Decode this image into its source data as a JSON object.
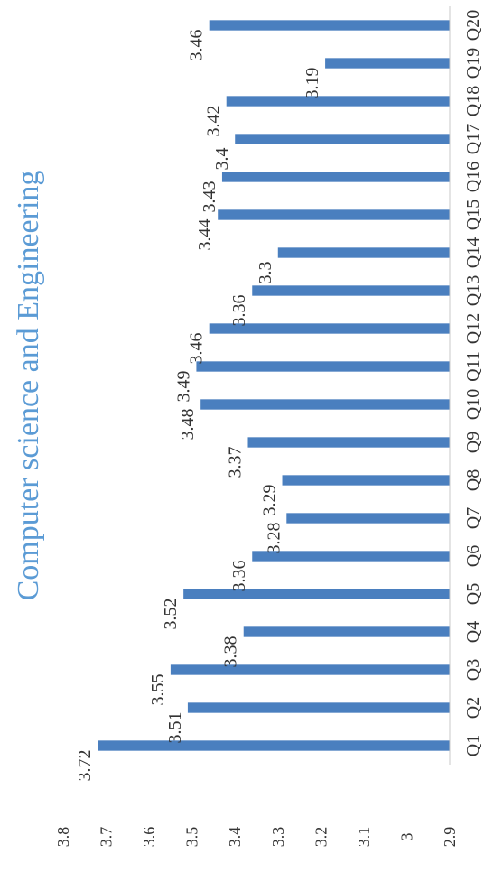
{
  "chart_data": {
    "type": "bar",
    "orientation": "rotated-90-ccw",
    "title": "Computer science and Engineering",
    "categories": [
      "Q1",
      "Q2",
      "Q3",
      "Q4",
      "Q5",
      "Q6",
      "Q7",
      "Q8",
      "Q9",
      "Q10",
      "Q11",
      "Q12",
      "Q13",
      "Q14",
      "Q15",
      "Q16",
      "Q17",
      "Q18",
      "Q19",
      "Q20"
    ],
    "values": [
      3.72,
      3.51,
      3.55,
      3.38,
      3.52,
      3.36,
      3.28,
      3.29,
      3.37,
      3.48,
      3.49,
      3.46,
      3.36,
      3.3,
      3.44,
      3.43,
      3.4,
      3.42,
      3.19,
      3.46
    ],
    "data_labels": [
      "3.72",
      "3.51",
      "3.55",
      "3.38",
      "3.52",
      "3.36",
      "3.28",
      "3.29",
      "3.37",
      "3.48",
      "3.49",
      "3.46",
      "3.36",
      "3.3",
      "3.44",
      "3.43",
      "3.4",
      "3.42",
      "3.19",
      "3.46"
    ],
    "yticks": [
      "2.9",
      "3",
      "3.1",
      "3.2",
      "3.3",
      "3.4",
      "3.5",
      "3.6",
      "3.7",
      "3.8"
    ],
    "ylim": [
      2.9,
      3.8
    ],
    "xlabel": "",
    "ylabel": "",
    "grid": false,
    "legend": "none",
    "colors": {
      "bar": "#4a7fbf",
      "title": "#5b9bd5",
      "text": "#333333"
    }
  }
}
